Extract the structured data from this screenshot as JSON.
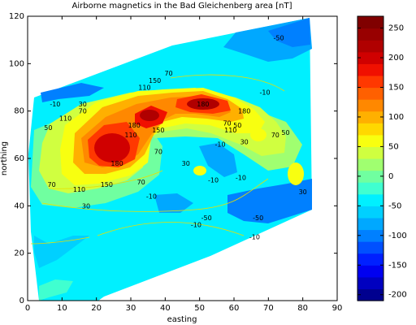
{
  "chart_data": [
    {
      "type": "contour",
      "title": "Airborne magnetics in the Bad Gleichenberg area [nT]",
      "xlabel": "easting",
      "ylabel": "northing",
      "xlim": [
        0,
        90
      ],
      "ylim": [
        0,
        120
      ],
      "xticks": [
        0,
        10,
        20,
        30,
        40,
        50,
        60,
        70,
        80,
        90
      ],
      "yticks": [
        0,
        20,
        40,
        60,
        80,
        100,
        120
      ],
      "grid": false,
      "contour_labels": [
        {
          "x": 73,
          "y": 111,
          "text": "-50"
        },
        {
          "x": 34,
          "y": 90,
          "text": "110"
        },
        {
          "x": 41,
          "y": 96,
          "text": "70"
        },
        {
          "x": 37,
          "y": 93,
          "text": "150"
        },
        {
          "x": 51,
          "y": 83,
          "text": "180"
        },
        {
          "x": 63,
          "y": 80,
          "text": "180"
        },
        {
          "x": 69,
          "y": 88,
          "text": "-10"
        },
        {
          "x": 8,
          "y": 83,
          "text": "-10"
        },
        {
          "x": 16,
          "y": 83,
          "text": "30"
        },
        {
          "x": 16,
          "y": 80,
          "text": "70"
        },
        {
          "x": 11,
          "y": 77,
          "text": "110"
        },
        {
          "x": 6,
          "y": 73,
          "text": "50"
        },
        {
          "x": 31,
          "y": 74,
          "text": "180"
        },
        {
          "x": 30,
          "y": 70,
          "text": "110"
        },
        {
          "x": 38,
          "y": 72,
          "text": "150"
        },
        {
          "x": 38,
          "y": 63,
          "text": "70"
        },
        {
          "x": 46,
          "y": 58,
          "text": "30"
        },
        {
          "x": 56,
          "y": 66,
          "text": "-10"
        },
        {
          "x": 59,
          "y": 72,
          "text": "110"
        },
        {
          "x": 58,
          "y": 75,
          "text": "70"
        },
        {
          "x": 63,
          "y": 67,
          "text": "30"
        },
        {
          "x": 61,
          "y": 74,
          "text": "50"
        },
        {
          "x": 72,
          "y": 70,
          "text": "70"
        },
        {
          "x": 75,
          "y": 71,
          "text": "50"
        },
        {
          "x": 26,
          "y": 58,
          "text": "180"
        },
        {
          "x": 23,
          "y": 49,
          "text": "150"
        },
        {
          "x": 15,
          "y": 47,
          "text": "110"
        },
        {
          "x": 7,
          "y": 49,
          "text": "70"
        },
        {
          "x": 17,
          "y": 40,
          "text": "30"
        },
        {
          "x": 33,
          "y": 50,
          "text": "70"
        },
        {
          "x": 36,
          "y": 44,
          "text": "-10"
        },
        {
          "x": 54,
          "y": 51,
          "text": "-10"
        },
        {
          "x": 62,
          "y": 52,
          "text": "-10"
        },
        {
          "x": 52,
          "y": 35,
          "text": "-50"
        },
        {
          "x": 49,
          "y": 32,
          "text": "-10"
        },
        {
          "x": 67,
          "y": 35,
          "text": "-50"
        },
        {
          "x": 66,
          "y": 27,
          "text": "-10"
        },
        {
          "x": 80,
          "y": 46,
          "text": "30"
        }
      ]
    },
    {
      "type": "colorbar",
      "ylim": [
        -210,
        270
      ],
      "ticks": [
        250,
        200,
        150,
        100,
        50,
        0,
        -50,
        -100,
        -150,
        -200
      ],
      "levels": [
        -210,
        -190,
        -170,
        -150,
        -130,
        -110,
        -90,
        -70,
        -50,
        -30,
        -10,
        10,
        30,
        50,
        70,
        90,
        110,
        130,
        150,
        170,
        190,
        210,
        230,
        250,
        270
      ],
      "colors": [
        "#00008f",
        "#0000c0",
        "#0000f0",
        "#0020ff",
        "#0050ff",
        "#0080ff",
        "#00a8ff",
        "#00d0ff",
        "#00f0ff",
        "#40ffd0",
        "#70ffa0",
        "#a0ff70",
        "#d0ff40",
        "#f8ff10",
        "#ffd800",
        "#ffb000",
        "#ff8800",
        "#ff6000",
        "#ff3800",
        "#f01000",
        "#d00000",
        "#b00000",
        "#980000",
        "#800000"
      ]
    }
  ]
}
